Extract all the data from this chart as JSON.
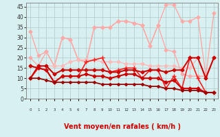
{
  "background_color": "#d8f0f0",
  "grid_color": "#b0c8c8",
  "xlabel": "Vent moyen/en rafales ( km/h )",
  "xlabel_color": "#cc0000",
  "xlabel_fontsize": 7,
  "ylabel_ticks": [
    0,
    5,
    10,
    15,
    20,
    25,
    30,
    35,
    40,
    45
  ],
  "x_values": [
    0,
    1,
    2,
    3,
    4,
    5,
    6,
    7,
    8,
    9,
    10,
    11,
    12,
    13,
    14,
    15,
    16,
    17,
    18,
    19,
    20,
    21,
    22,
    23
  ],
  "series": [
    {
      "y": [
        33,
        21,
        23,
        16,
        30,
        29,
        19,
        18,
        35,
        35,
        35,
        38,
        38,
        37,
        36,
        26,
        36,
        46,
        46,
        38,
        38,
        40,
        11,
        42
      ],
      "color": "#ffaaaa",
      "linewidth": 1.0,
      "marker": "D",
      "markersize": 2.5
    },
    {
      "y": [
        20,
        16,
        23,
        16,
        30,
        29,
        19,
        18,
        35,
        35,
        35,
        38,
        38,
        37,
        36,
        26,
        36,
        24,
        23,
        12,
        11,
        11,
        11,
        20
      ],
      "color": "#ffaaaa",
      "linewidth": 1.0,
      "marker": "D",
      "markersize": 2.5
    },
    {
      "y": [
        10,
        16,
        16,
        16,
        16,
        18,
        19,
        19,
        19,
        18,
        18,
        18,
        17,
        17,
        17,
        16,
        16,
        16,
        16,
        15,
        15,
        20,
        10,
        20
      ],
      "color": "#ffbbbb",
      "linewidth": 1.0,
      "marker": "D",
      "markersize": 2.5
    },
    {
      "y": [
        10,
        15,
        14,
        8,
        11,
        11,
        11,
        18,
        19,
        20,
        13,
        14,
        15,
        15,
        10,
        14,
        14,
        5,
        11,
        5,
        20,
        10,
        3,
        3
      ],
      "color": "#ff2020",
      "linewidth": 1.2,
      "marker": "+",
      "markersize": 4
    },
    {
      "y": [
        10,
        16,
        16,
        12,
        14,
        14,
        14,
        14,
        14,
        14,
        13,
        13,
        14,
        14,
        13,
        14,
        14,
        13,
        14,
        14,
        20,
        20,
        10,
        20
      ],
      "color": "#cc0000",
      "linewidth": 1.5,
      "marker": "D",
      "markersize": 2.5
    },
    {
      "y": [
        16,
        15,
        14,
        8,
        11,
        11,
        11,
        12,
        11,
        11,
        10,
        11,
        12,
        12,
        10,
        10,
        10,
        8,
        9,
        5,
        5,
        5,
        3,
        3
      ],
      "color": "#cc0000",
      "linewidth": 1.5,
      "marker": "D",
      "markersize": 2.5
    },
    {
      "y": [
        10,
        10,
        9,
        8,
        8,
        8,
        8,
        8,
        8,
        7,
        7,
        7,
        7,
        7,
        7,
        6,
        6,
        5,
        5,
        4,
        4,
        4,
        3,
        3
      ],
      "color": "#990000",
      "linewidth": 1.3,
      "marker": "D",
      "markersize": 2.0
    }
  ],
  "arrow_row": [
    "↗",
    "↗",
    "↗",
    "↗",
    "→",
    "↗",
    "↗",
    "↗",
    "↗",
    "↗",
    "↗",
    "↗",
    "↗",
    "↗",
    "↗",
    "↗",
    "↗",
    "↗",
    "↗",
    "↗",
    "↗",
    "↗",
    "↘",
    "→"
  ],
  "ylim": [
    0,
    47
  ],
  "xlim": [
    -0.5,
    23.5
  ]
}
